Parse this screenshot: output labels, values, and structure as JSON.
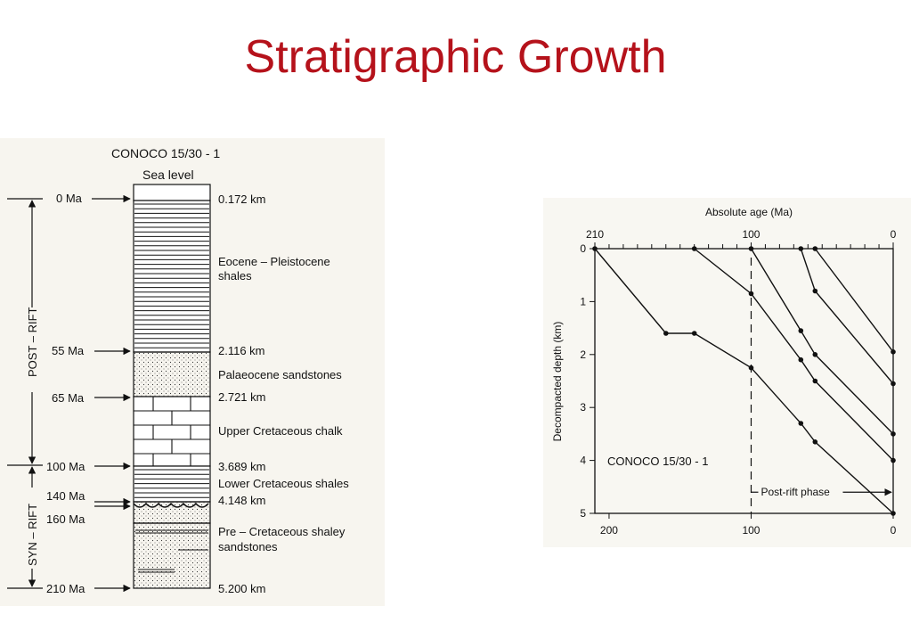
{
  "slide": {
    "title": "Stratigraphic Growth"
  },
  "column": {
    "title": "CONOCO 15/30 - 1",
    "sea_level": "Sea level",
    "phase_post": "POST – RIFT",
    "phase_syn": "SYN – RIFT",
    "ages": [
      "0 Ma",
      "55 Ma",
      "65 Ma",
      "100 Ma",
      "140 Ma",
      "160 Ma",
      "210 Ma"
    ],
    "depths": [
      "0.172 km",
      "2.116 km",
      "2.721 km",
      "3.689 km",
      "4.148 km",
      "5.200 km"
    ],
    "units": {
      "eocene_1": "Eocene – Pleistocene",
      "eocene_2": "shales",
      "palaeocene": "Palaeocene sandstones",
      "chalk": "Upper Cretaceous chalk",
      "lower_cret": "Lower Cretaceous shales",
      "pre_cret_1": "Pre – Cretaceous shaley",
      "pre_cret_2": "sandstones"
    }
  },
  "chart_data": {
    "type": "line",
    "title": "",
    "xlabel_top": "Absolute age (Ma)",
    "ylabel": "Decompacted depth (km)",
    "x_reversed": true,
    "xlim": [
      210,
      0
    ],
    "ylim": [
      0,
      5
    ],
    "top_ticks": [
      "210",
      "100",
      "0"
    ],
    "bottom_ticks": [
      "200",
      "100",
      "0"
    ],
    "y_ticks": [
      "0",
      "1",
      "2",
      "3",
      "4",
      "5"
    ],
    "well_label": "CONOCO 15/30 - 1",
    "post_rift_marker": {
      "label": "Post-rift phase",
      "x": 100
    },
    "series": [
      {
        "points": [
          [
            210,
            0
          ],
          [
            160,
            1.6
          ],
          [
            140,
            1.6
          ],
          [
            100,
            2.25
          ],
          [
            65,
            3.3
          ],
          [
            55,
            3.65
          ],
          [
            0,
            5.0
          ]
        ]
      },
      {
        "points": [
          [
            140,
            0
          ],
          [
            100,
            0.85
          ],
          [
            65,
            2.1
          ],
          [
            55,
            2.5
          ],
          [
            0,
            4.0
          ]
        ]
      },
      {
        "points": [
          [
            100,
            0
          ],
          [
            65,
            1.55
          ],
          [
            55,
            2.0
          ],
          [
            0,
            3.5
          ]
        ]
      },
      {
        "points": [
          [
            65,
            0
          ],
          [
            55,
            0.8
          ],
          [
            0,
            2.55
          ]
        ]
      },
      {
        "points": [
          [
            55,
            0
          ],
          [
            0,
            1.95
          ]
        ]
      }
    ],
    "grid": false
  }
}
